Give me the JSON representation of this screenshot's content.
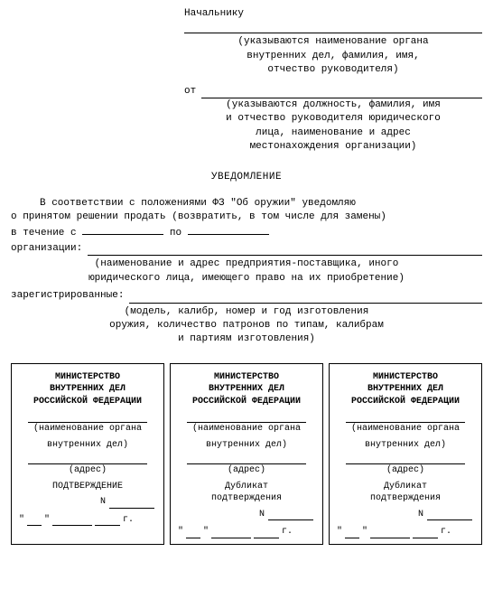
{
  "header": {
    "to_label": "Начальнику",
    "to_hint_line1": "(указываются наименование органа",
    "to_hint_line2": "внутренних дел, фамилия, имя,",
    "to_hint_line3": "отчество руководителя)",
    "from_label": "от",
    "from_hint_line1": "(указываются должность, фамилия, имя",
    "from_hint_line2": "и отчество руководителя юридического",
    "from_hint_line3": "лица, наименование и адрес",
    "from_hint_line4": "местонахождения организации)"
  },
  "title": "УВЕДОМЛЕНИЕ",
  "body": {
    "para1_part1": "В  соответствии  с  положениями  ФЗ  \"Об  оружии\"  уведомляю",
    "para1_part2": "о  принятом  решении  продать  (возвратить,  в  том  числе  для  замены)",
    "line_start": "в  течение с",
    "line_po": "по",
    "org_label": "организации:",
    "org_hint_line1": "(наименование и адрес предприятия-поставщика, иного",
    "org_hint_line2": "юридического лица, имеющего право на их приобретение)",
    "reg_label": "зарегистрированные:",
    "reg_hint_line1": "(модель, калибр, номер и год изготовления",
    "reg_hint_line2": "оружия, количество патронов по типам, калибрам",
    "reg_hint_line3": "и партиям изготовления)"
  },
  "card": {
    "ministry_line1": "МИНИСТЕРСТВО",
    "ministry_line2": "ВНУТРЕННИХ ДЕЛ",
    "ministry_line3": "РОССИЙСКОЙ ФЕДЕРАЦИИ",
    "org_hint_line1": "(наименование органа",
    "org_hint_line2": "внутренних дел)",
    "address_label": "(адрес)",
    "confirm1": "ПОДТВЕРЖДЕНИЕ",
    "confirm2_line1": "Дубликат",
    "confirm2_line2": "подтверждения",
    "n_label": "N",
    "date_quote": "\"",
    "date_year_suffix": "г."
  }
}
